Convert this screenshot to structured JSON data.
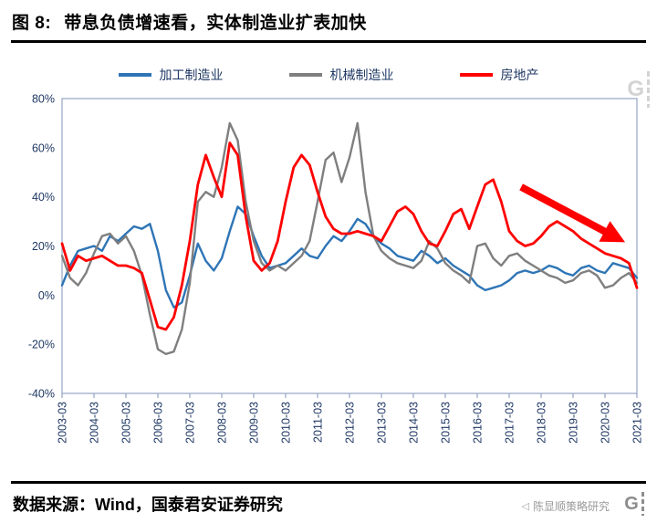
{
  "title": {
    "prefix": "图 8:",
    "text": "带息负债增速看，实体制造业扩表加快"
  },
  "legend": [
    {
      "label": "加工制造业",
      "color": "#2E75B6"
    },
    {
      "label": "机械制造业",
      "color": "#7F7F7F"
    },
    {
      "label": "房地产",
      "color": "#FF0000"
    }
  ],
  "chart_data": {
    "type": "line",
    "sampling": "quarterly",
    "x_tick_labels": [
      "2003-03",
      "2004-03",
      "2005-03",
      "2006-03",
      "2007-03",
      "2008-03",
      "2009-03",
      "2010-03",
      "2011-03",
      "2012-03",
      "2013-03",
      "2014-03",
      "2015-03",
      "2016-03",
      "2017-03",
      "2018-03",
      "2019-03",
      "2020-03",
      "2021-03"
    ],
    "ylim": [
      -40,
      80
    ],
    "y_ticks": [
      80,
      60,
      40,
      20,
      0,
      -20,
      -40
    ],
    "y_tick_suffix": "%",
    "axis_color": "#96A5C4",
    "tick_label_color": "#1F3864",
    "grid": false,
    "legend_position": "top",
    "series": [
      {
        "name": "加工制造业",
        "color": "#2E75B6",
        "width": 2.4,
        "values": [
          4,
          12,
          18,
          19,
          20,
          18,
          24,
          22,
          25,
          28,
          27,
          29,
          18,
          2,
          -5,
          -3,
          8,
          21,
          14,
          10,
          15,
          26,
          36,
          33,
          24,
          16,
          11,
          12,
          13,
          16,
          19,
          16,
          15,
          20,
          24,
          22,
          26,
          31,
          29,
          24,
          21,
          19,
          16,
          15,
          14,
          18,
          16,
          13,
          15,
          12,
          10,
          8,
          4,
          2,
          3,
          4,
          6,
          9,
          10,
          9,
          10,
          12,
          11,
          9,
          8,
          11,
          12,
          10,
          9,
          13,
          12,
          11,
          7
        ]
      },
      {
        "name": "机械制造业",
        "color": "#7F7F7F",
        "width": 2.4,
        "values": [
          16,
          7,
          4,
          9,
          17,
          24,
          25,
          21,
          24,
          18,
          8,
          -8,
          -22,
          -24,
          -23,
          -14,
          5,
          38,
          42,
          40,
          52,
          70,
          63,
          38,
          22,
          13,
          10,
          12,
          10,
          13,
          16,
          22,
          38,
          55,
          58,
          46,
          56,
          70,
          42,
          24,
          18,
          15,
          13,
          12,
          11,
          14,
          22,
          19,
          13,
          10,
          8,
          5,
          20,
          21,
          15,
          12,
          16,
          17,
          14,
          12,
          10,
          8,
          7,
          5,
          6,
          9,
          10,
          8,
          3,
          4,
          7,
          9,
          5
        ]
      },
      {
        "name": "房地产",
        "color": "#FF0000",
        "width": 2.8,
        "values": [
          21,
          10,
          16,
          14,
          15,
          16,
          14,
          12,
          12,
          11,
          9,
          -2,
          -13,
          -14,
          -9,
          4,
          22,
          45,
          57,
          48,
          40,
          62,
          57,
          32,
          14,
          10,
          13,
          22,
          38,
          52,
          57,
          53,
          42,
          32,
          27,
          25,
          25,
          26,
          25,
          24,
          22,
          28,
          34,
          36,
          33,
          26,
          21,
          20,
          26,
          33,
          35,
          27,
          36,
          45,
          47,
          38,
          26,
          22,
          20,
          21,
          24,
          28,
          30,
          28,
          26,
          23,
          21,
          19,
          17,
          16,
          15,
          13,
          3
        ]
      }
    ],
    "annotation_arrow": {
      "color": "#FF0000",
      "from": {
        "index": 57.5,
        "value": 44
      },
      "to": {
        "index": 68.5,
        "value": 25
      }
    }
  },
  "footer": {
    "source": "数据来源：Wind，国泰君安证券研究",
    "watermark_icon": "◁",
    "watermark": "陈显顺策略研究",
    "logo_letter": "G"
  }
}
